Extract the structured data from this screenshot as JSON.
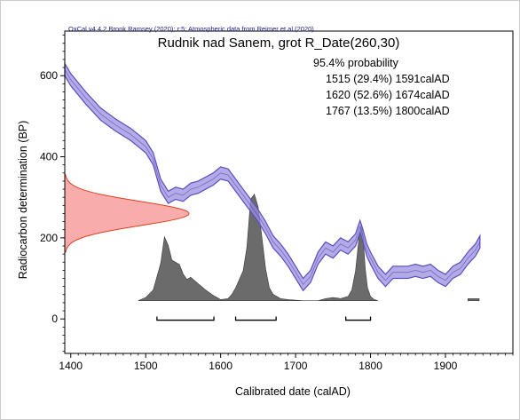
{
  "chart_data": {
    "type": "area",
    "credit": "OxCal v4.4.2 Bronk Ramsey (2020); r:5; Atmospheric data from Reimer et al (2020)",
    "title": "Rudnik nad Sanem, grot R_Date(260,30)",
    "probability_label": "95.4% probability",
    "ranges": [
      {
        "text": "1515 (29.4%) 1591calAD",
        "from": 1515,
        "to": 1591
      },
      {
        "text": "1620 (52.6%) 1674calAD",
        "from": 1620,
        "to": 1674
      },
      {
        "text": "1767 (13.5%) 1800calAD",
        "from": 1767,
        "to": 1800
      }
    ],
    "xlabel": "Calibrated date (calAD)",
    "ylabel": "Radiocarbon determination (BP)",
    "xlim": [
      1392,
      1990
    ],
    "ylim": [
      -85,
      710
    ],
    "x_ticks": [
      1400,
      1500,
      1600,
      1700,
      1800,
      1900
    ],
    "y_ticks": [
      0,
      200,
      400,
      600
    ],
    "series": [
      {
        "kind": "calibration_band",
        "x": [
          1392,
          1400,
          1420,
          1440,
          1460,
          1480,
          1500,
          1510,
          1520,
          1530,
          1540,
          1550,
          1560,
          1570,
          1580,
          1590,
          1600,
          1610,
          1620,
          1630,
          1640,
          1650,
          1660,
          1670,
          1680,
          1690,
          1700,
          1710,
          1720,
          1730,
          1740,
          1750,
          1760,
          1770,
          1780,
          1786,
          1790,
          1795,
          1800,
          1810,
          1820,
          1830,
          1840,
          1850,
          1860,
          1870,
          1880,
          1890,
          1900,
          1910,
          1920,
          1930,
          1940,
          1946
        ],
        "y": [
          615,
          590,
          545,
          505,
          478,
          455,
          425,
          395,
          330,
          300,
          310,
          305,
          320,
          325,
          335,
          345,
          360,
          355,
          330,
          305,
          280,
          255,
          225,
          190,
          170,
          145,
          115,
          85,
          105,
          150,
          175,
          165,
          185,
          175,
          195,
          228,
          205,
          170,
          150,
          115,
          95,
          115,
          115,
          115,
          120,
          115,
          120,
          105,
          95,
          115,
          125,
          150,
          170,
          190
        ],
        "half_width": 15
      },
      {
        "kind": "measurement",
        "mean": 260,
        "sigma": 30
      },
      {
        "kind": "posterior_distribution",
        "x": [
          1490,
          1500,
          1510,
          1520,
          1525,
          1530,
          1535,
          1540,
          1545,
          1550,
          1555,
          1560,
          1570,
          1580,
          1590,
          1600,
          1610,
          1615,
          1620,
          1630,
          1635,
          1640,
          1645,
          1650,
          1655,
          1660,
          1665,
          1670,
          1675,
          1680,
          1690,
          1700,
          1710,
          1720,
          1730,
          1740,
          1750,
          1760,
          1770,
          1775,
          1780,
          1785,
          1788,
          1790,
          1793,
          1796,
          1800,
          1805,
          1810
        ],
        "y": [
          0,
          0.03,
          0.1,
          0.35,
          0.6,
          0.52,
          0.38,
          0.36,
          0.34,
          0.25,
          0.2,
          0.22,
          0.16,
          0.1,
          0.05,
          0.01,
          0.02,
          0.06,
          0.12,
          0.28,
          0.5,
          0.95,
          1.0,
          0.88,
          0.6,
          0.3,
          0.12,
          0.06,
          0.04,
          0.02,
          0.01,
          0.005,
          0,
          0,
          0,
          0.02,
          0.03,
          0.02,
          0.04,
          0.1,
          0.28,
          0.62,
          0.72,
          0.6,
          0.3,
          0.12,
          0.04,
          0.01,
          0
        ],
        "extra_x": [
          1930,
          1945
        ],
        "extra_y": [
          0.02,
          0.02
        ]
      }
    ]
  }
}
